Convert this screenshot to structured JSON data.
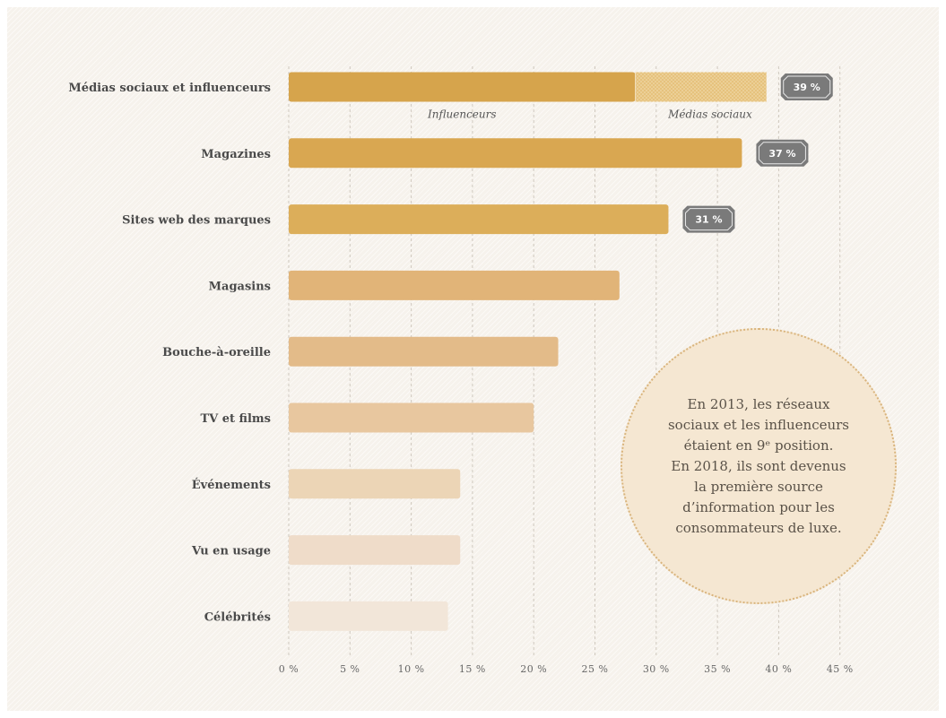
{
  "chart_data": {
    "type": "bar",
    "orientation": "horizontal",
    "categories": [
      "Médias sociaux et influenceurs",
      "Magazines",
      "Sites web des marques",
      "Magasins",
      "Bouche-à-oreille",
      "TV et films",
      "Événements",
      "Vu en usage",
      "Célébrités"
    ],
    "values": [
      39,
      37,
      31,
      27,
      22,
      20,
      14,
      14,
      13
    ],
    "value_labels": [
      "39 %",
      "37 %",
      "31 %",
      "",
      "",
      "",
      "",
      "",
      ""
    ],
    "xlim": [
      0,
      45
    ],
    "xticks": [
      0,
      5,
      10,
      15,
      20,
      25,
      30,
      35,
      40,
      45
    ],
    "xtick_labels": [
      "0 %",
      "5 %",
      "10 %",
      "15 %",
      "20 %",
      "25 %",
      "30 %",
      "35 %",
      "40 %",
      "45 %"
    ],
    "grid": "vertical dashed",
    "stacked_first_bar": {
      "segments": [
        {
          "name": "Influenceurs",
          "value": 28.3
        },
        {
          "name": "Médias sociaux",
          "value": 10.7
        }
      ]
    },
    "colors": [
      "#d6a44c",
      "#d9a751",
      "#dcae5a",
      "#e1b478",
      "#e3bb89",
      "#e8c79f",
      "#ecd5b6",
      "#efdcc9",
      "#f2e6d9"
    ],
    "hatch_color": "#e6c07a"
  },
  "callout": {
    "lines": [
      "En 2013, les réseaux",
      "sociaux et les influenceurs",
      "étaient en 9ᵉ position.",
      "En 2018, ils sont devenus",
      "la première source",
      "d’information pour les",
      "consommateurs de luxe."
    ]
  }
}
